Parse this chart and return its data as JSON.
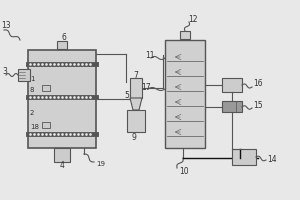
{
  "bg_color": "#e8e8e8",
  "line_color": "#555555",
  "dark_line": "#111111",
  "label_color": "#333333",
  "fig_bg": "#e8e8e8",
  "fc_light": "#d0d0d0",
  "fc_mid": "#cccccc",
  "fc_dark": "#999999"
}
